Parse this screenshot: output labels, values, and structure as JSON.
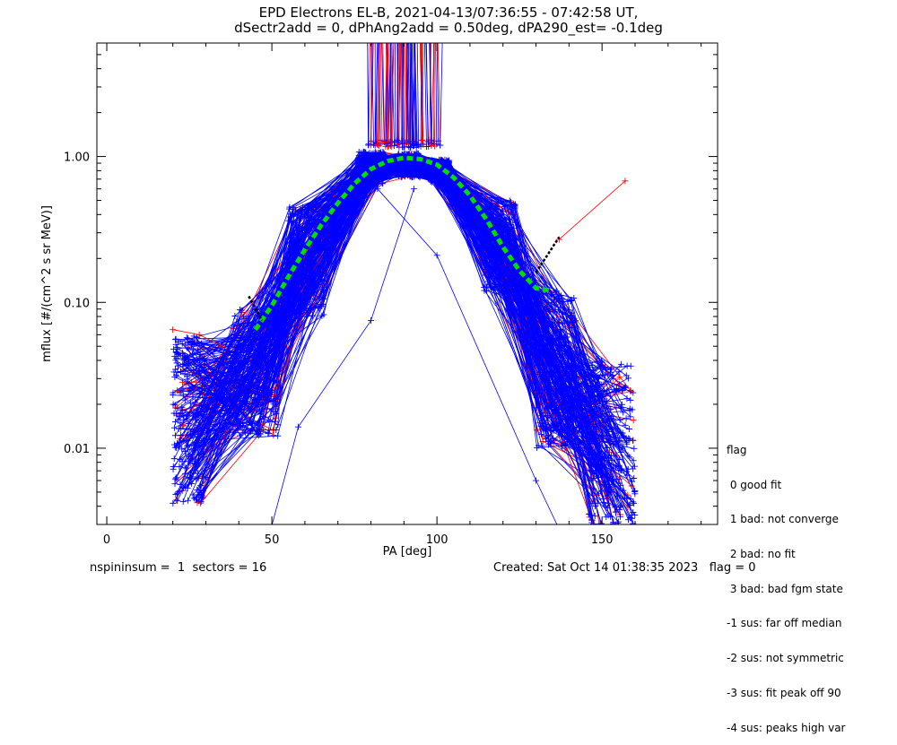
{
  "title_line1": "EPD Electrons EL-B, 2021-04-13/07:36:55 - 07:42:58 UT,",
  "title_line2": "dSectr2add = 0, dPhAng2add = 0.50deg, dPA290_est=  -0.1deg",
  "footer": {
    "left": "nspininsum =  1  sectors = 16",
    "right": "Created: Sat Oct 14 01:38:35 2023   flag = 0"
  },
  "legend": {
    "title": "flag",
    "items": [
      " 0 good fit",
      " 1 bad: not converge",
      " 2 bad: no fit",
      " 3 bad: bad fgm state",
      "-1 sus: far off median",
      "-2 sus: not symmetric",
      "-3 sus: fit peak off 90",
      "-4 sus: peaks high var"
    ]
  },
  "chart_data": {
    "type": "line",
    "xlabel": "PA [deg]",
    "ylabel": "mflux [#/(cm^2 s sr MeV)]",
    "xlim": [
      -3,
      185
    ],
    "ylim": [
      0.003,
      6.0
    ],
    "yscale": "log",
    "xticks": [
      0,
      50,
      100,
      150
    ],
    "xtick_labels": [
      "0",
      "50",
      "100",
      "150"
    ],
    "yticks": [
      0.01,
      0.1,
      1.0
    ],
    "ytick_labels": [
      "0.01",
      "0.10",
      "1.00"
    ],
    "colors": {
      "spectra_blue": "#0000ff",
      "spectra_red": "#ff0000",
      "fit": "#00dd00",
      "marker": "#000000"
    },
    "fit_curve": {
      "x": [
        45,
        50,
        55,
        60,
        65,
        70,
        75,
        80,
        85,
        90,
        95,
        100,
        105,
        110,
        115,
        120,
        125,
        130,
        135
      ],
      "y": [
        0.065,
        0.095,
        0.15,
        0.23,
        0.34,
        0.48,
        0.65,
        0.82,
        0.93,
        0.98,
        0.96,
        0.88,
        0.72,
        0.54,
        0.37,
        0.24,
        0.165,
        0.125,
        0.12
      ]
    },
    "black_markers": [
      {
        "x": [
          43,
          47
        ],
        "y": [
          0.11,
          0.075
        ]
      },
      {
        "x": [
          130,
          137
        ],
        "y": [
          0.16,
          0.28
        ]
      }
    ],
    "blue_spectra_count": 220,
    "red_spectra_count": 45,
    "spectrum_shape": {
      "low_pa_start": [
        20,
        0.004,
        0.06
      ],
      "rise_pa": [
        45,
        65
      ],
      "peak_pa": [
        80,
        95
      ],
      "peak_flux": [
        0.7,
        1.1
      ],
      "fall_pa": [
        115,
        135
      ],
      "high_pa_end": [
        160,
        0.003,
        0.04
      ]
    },
    "saturated_band": {
      "x_range": [
        79,
        101
      ],
      "y_floor": 1.15
    },
    "outlier_red_point": {
      "x": [
        137,
        157
      ],
      "y": [
        0.27,
        0.68
      ]
    }
  }
}
